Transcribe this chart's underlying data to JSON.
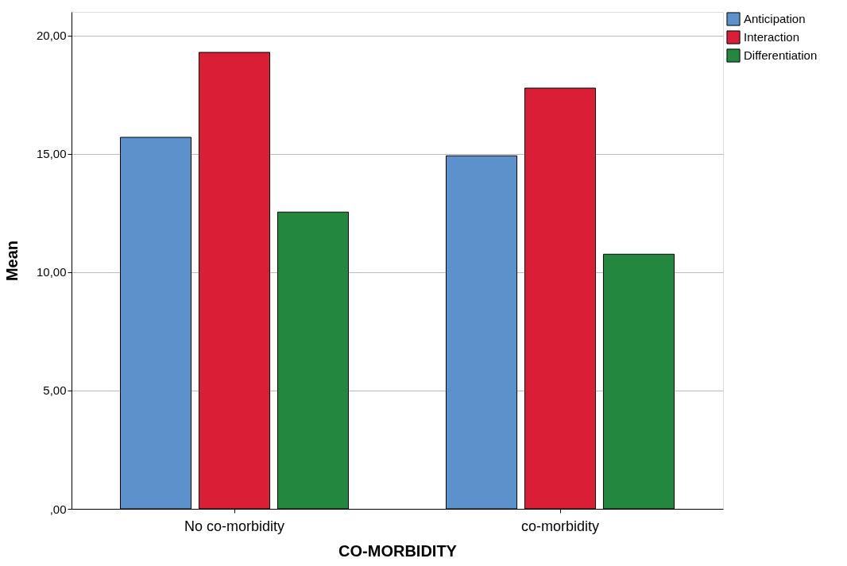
{
  "chart_data": {
    "type": "bar",
    "xlabel": "CO-MORBIDITY",
    "ylabel": "Mean",
    "categories": [
      "No co-morbidity",
      "co-morbidity"
    ],
    "series": [
      {
        "name": "Anticipation",
        "color": "#5b92cc",
        "values": [
          15.7,
          14.92
        ]
      },
      {
        "name": "Interaction",
        "color": "#d91e36",
        "values": [
          19.29,
          17.78
        ]
      },
      {
        "name": "Differentiation",
        "color": "#23873f",
        "values": [
          12.54,
          10.76
        ]
      }
    ],
    "ylim": [
      0,
      21
    ],
    "yticks": [
      {
        "value": 0,
        "label": ",00"
      },
      {
        "value": 5,
        "label": "5,00"
      },
      {
        "value": 10,
        "label": "10,00"
      },
      {
        "value": 15,
        "label": "15,00"
      },
      {
        "value": 20,
        "label": "20,00"
      }
    ],
    "grid": "y",
    "legend": "top right"
  }
}
